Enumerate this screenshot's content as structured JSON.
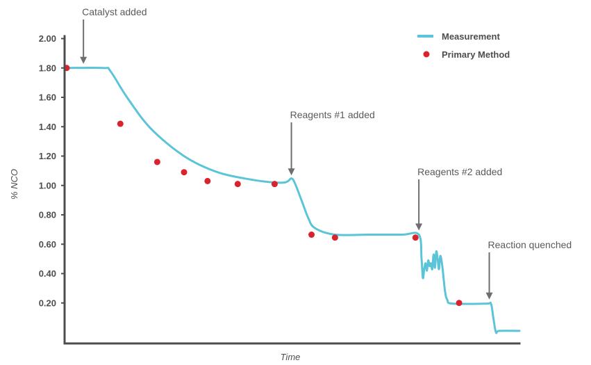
{
  "chart_data": {
    "type": "line",
    "xlabel": "Time",
    "ylabel": "% NCO",
    "ylim": [
      0,
      2.0
    ],
    "yticks": [
      "2.00",
      "1.80",
      "1.60",
      "1.40",
      "1.20",
      "1.00",
      "0.80",
      "0.60",
      "0.40",
      "0.20"
    ],
    "grid": false,
    "legend_position": "top-right",
    "colors": {
      "measurement": "#5bc4d8",
      "primary": "#d9232d",
      "axis": "#4d4d4d",
      "arrow": "#6e6e6e"
    },
    "series": [
      {
        "name": "Measurement",
        "kind": "line",
        "x": [
          0,
          11,
          13,
          18,
          25,
          35,
          45,
          55,
          62,
          65,
          66,
          67.5,
          70,
          72,
          74,
          80,
          90,
          100,
          105,
          105.8,
          106.2,
          106.6,
          107,
          107.4,
          107.8,
          108.2,
          108.6,
          109,
          109.4,
          109.8,
          110.2,
          110.6,
          111,
          111.4,
          112,
          112.8,
          113.5,
          115,
          125,
          126.5,
          127.2,
          128,
          129,
          135
        ],
        "y": [
          1.8,
          1.8,
          1.78,
          1.6,
          1.39,
          1.2,
          1.09,
          1.04,
          1.02,
          1.02,
          1.03,
          1.04,
          0.9,
          0.78,
          0.71,
          0.665,
          0.665,
          0.665,
          0.665,
          0.5,
          0.37,
          0.43,
          0.47,
          0.42,
          0.49,
          0.45,
          0.47,
          0.43,
          0.53,
          0.44,
          0.55,
          0.5,
          0.43,
          0.52,
          0.45,
          0.28,
          0.22,
          0.195,
          0.195,
          0.195,
          0.1,
          0.0,
          0.01,
          0.01
        ]
      },
      {
        "name": "Primary Method",
        "kind": "points",
        "x": [
          0,
          16,
          27,
          35,
          42,
          51,
          62,
          73,
          80,
          104,
          117
        ],
        "y": [
          1.8,
          1.42,
          1.16,
          1.09,
          1.03,
          1.01,
          1.01,
          0.665,
          0.645,
          0.645,
          0.2
        ]
      }
    ],
    "annotations": [
      {
        "label": "Catalyst added",
        "x": 5,
        "y": 1.8
      },
      {
        "label": "Reagents #1 added",
        "x": 67,
        "y": 1.04
      },
      {
        "label": "Reagents #2 added",
        "x": 105,
        "y": 0.665
      },
      {
        "label": "Reaction quenched",
        "x": 126,
        "y": 0.195
      }
    ]
  }
}
